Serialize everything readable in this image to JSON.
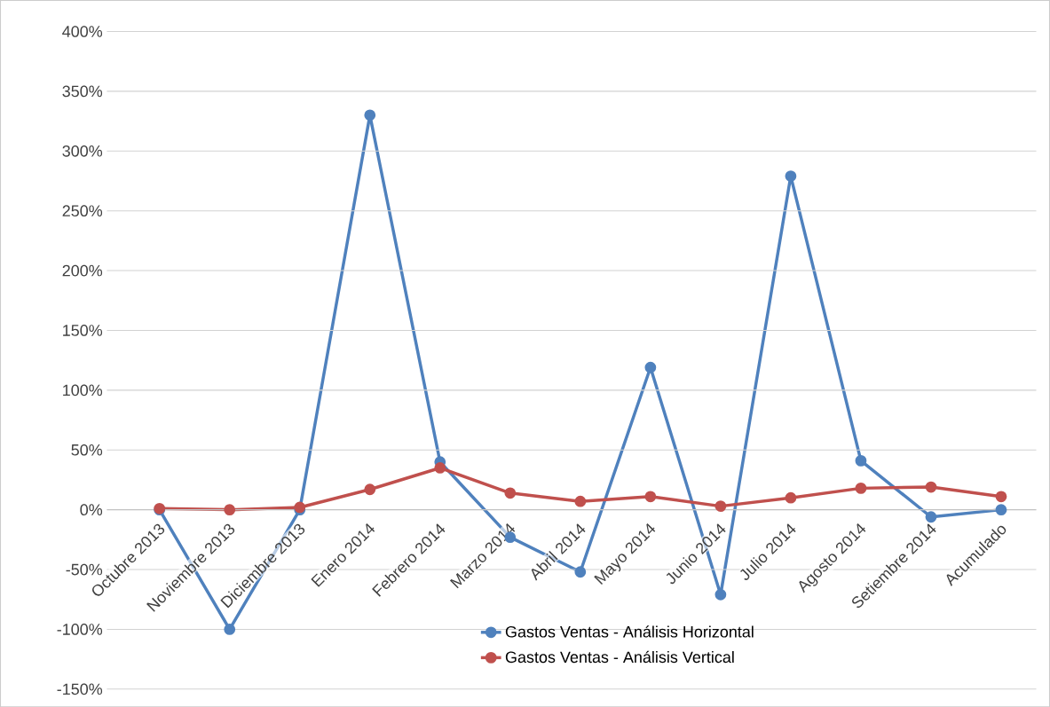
{
  "chart_data": {
    "type": "line",
    "categories": [
      "Octubre 2013",
      "Noviembre 2013",
      "Diciembre 2013",
      "Enero 2014",
      "Febrero 2014",
      "Marzo 2014",
      "Abril 2014",
      "Mayo 2014",
      "Junio 2014",
      "Julio 2014",
      "Agosto 2014",
      "Setiembre 2014",
      "Acumulado"
    ],
    "series": [
      {
        "name": "Gastos Ventas - Análisis Horizontal",
        "color": "#4f81bd",
        "values": [
          0,
          -100,
          0,
          330,
          40,
          -23,
          -52,
          119,
          -71,
          279,
          41,
          -6,
          0
        ]
      },
      {
        "name": "Gastos Ventas - Análisis Vertical",
        "color": "#c0504d",
        "values": [
          1,
          0,
          2,
          17,
          35,
          14,
          7,
          11,
          3,
          10,
          18,
          19,
          11
        ]
      }
    ],
    "ylim": [
      -150,
      400
    ],
    "yticks": [
      {
        "value": -150,
        "label": "-150%"
      },
      {
        "value": -100,
        "label": "-100%"
      },
      {
        "value": -50,
        "label": "-50%"
      },
      {
        "value": 0,
        "label": "0%"
      },
      {
        "value": 50,
        "label": "50%"
      },
      {
        "value": 100,
        "label": "100%"
      },
      {
        "value": 150,
        "label": "150%"
      },
      {
        "value": 200,
        "label": "200%"
      },
      {
        "value": 250,
        "label": "250%"
      },
      {
        "value": 300,
        "label": "300%"
      },
      {
        "value": 350,
        "label": "350%"
      },
      {
        "value": 400,
        "label": "400%"
      }
    ],
    "grid": "y",
    "legend": "bottom",
    "marker": "circle",
    "line_style": "solid"
  }
}
